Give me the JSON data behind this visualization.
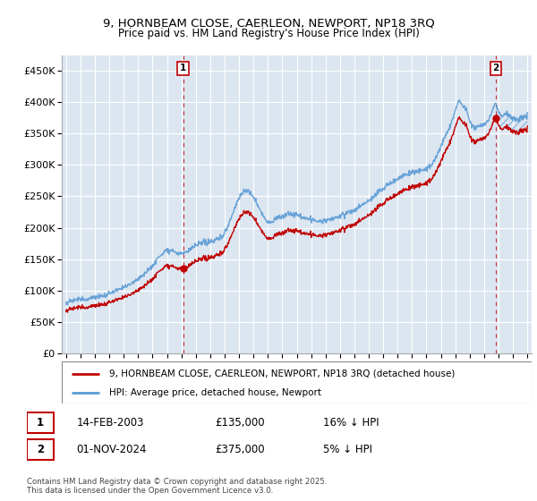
{
  "title_line1": "9, HORNBEAM CLOSE, CAERLEON, NEWPORT, NP18 3RQ",
  "title_line2": "Price paid vs. HM Land Registry's House Price Index (HPI)",
  "ylim": [
    0,
    475000
  ],
  "xlim_start": 1994.7,
  "xlim_end": 2027.3,
  "yticks": [
    0,
    50000,
    100000,
    150000,
    200000,
    250000,
    300000,
    350000,
    400000,
    450000
  ],
  "ytick_labels": [
    "£0",
    "£50K",
    "£100K",
    "£150K",
    "£200K",
    "£250K",
    "£300K",
    "£350K",
    "£400K",
    "£450K"
  ],
  "xtick_years": [
    1995,
    1996,
    1997,
    1998,
    1999,
    2000,
    2001,
    2002,
    2003,
    2004,
    2005,
    2006,
    2007,
    2008,
    2009,
    2010,
    2011,
    2012,
    2013,
    2014,
    2015,
    2016,
    2017,
    2018,
    2019,
    2020,
    2021,
    2022,
    2023,
    2024,
    2025,
    2026,
    2027
  ],
  "hpi_color": "#5b9bd5",
  "price_color": "#c00000",
  "background_color": "#ffffff",
  "plot_bg_color": "#dce6f1",
  "grid_color": "#ffffff",
  "sale1_year": 2003.12,
  "sale1_price": 135000,
  "sale1_label": "1",
  "sale1_date": "14-FEB-2003",
  "sale1_hpi_pct": "16% ↓ HPI",
  "sale2_year": 2024.83,
  "sale2_price": 375000,
  "sale2_label": "2",
  "sale2_date": "01-NOV-2024",
  "sale2_hpi_pct": "5% ↓ HPI",
  "legend1_text": "9, HORNBEAM CLOSE, CAERLEON, NEWPORT, NP18 3RQ (detached house)",
  "legend2_text": "HPI: Average price, detached house, Newport",
  "footer_text": "Contains HM Land Registry data © Crown copyright and database right 2025.\nThis data is licensed under the Open Government Licence v3.0.",
  "marker_size": 6
}
